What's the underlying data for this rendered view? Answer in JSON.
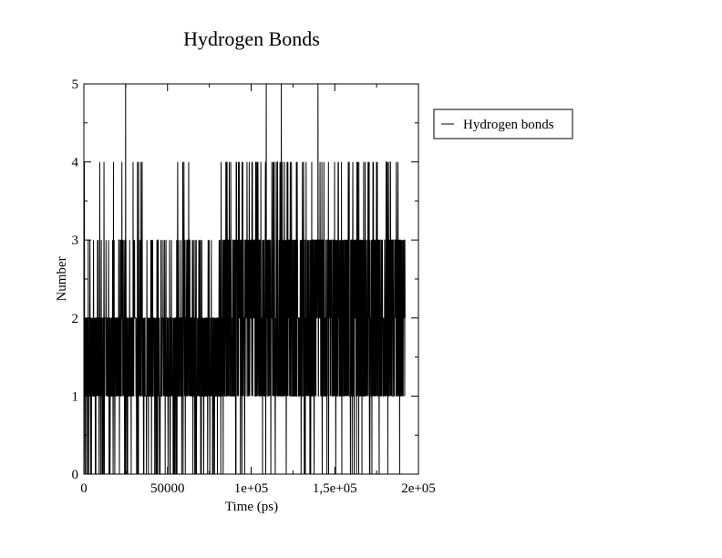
{
  "chart_data": {
    "type": "line",
    "title": "Hydrogen Bonds",
    "xlabel": "Time (ps)",
    "ylabel": "Number",
    "xlim": [
      0,
      200000
    ],
    "ylim": [
      0,
      5
    ],
    "x_ticks": [
      {
        "value": 0,
        "label": "0"
      },
      {
        "value": 50000,
        "label": "50000"
      },
      {
        "value": 100000,
        "label": "1e+05"
      },
      {
        "value": 150000,
        "label": "1,5e+05"
      },
      {
        "value": 200000,
        "label": "2e+05"
      }
    ],
    "y_ticks": [
      {
        "value": 0,
        "label": "0"
      },
      {
        "value": 1,
        "label": "1"
      },
      {
        "value": 2,
        "label": "2"
      },
      {
        "value": 3,
        "label": "3"
      },
      {
        "value": 4,
        "label": "4"
      },
      {
        "value": 5,
        "label": "5"
      }
    ],
    "grid": false,
    "legend": {
      "placement": "right-outside",
      "entries": [
        "Hydrogen bonds"
      ]
    },
    "series": [
      {
        "name": "Hydrogen bonds",
        "color": "#000000",
        "x_range": [
          0,
          192000
        ],
        "note_values": "time series of integer counts 0-5",
        "phases": [
          {
            "x_start": 0,
            "x_end": 82000,
            "dominant_low": 1,
            "dominant_high": 2
          },
          {
            "x_start": 82000,
            "x_end": 192000,
            "dominant_low": 1,
            "dominant_high": 3
          }
        ],
        "peaks": [
          {
            "x": 25000,
            "y": 5
          },
          {
            "x": 109000,
            "y": 5
          },
          {
            "x": 118000,
            "y": 5
          },
          {
            "x": 140000,
            "y": 5
          }
        ]
      }
    ]
  }
}
